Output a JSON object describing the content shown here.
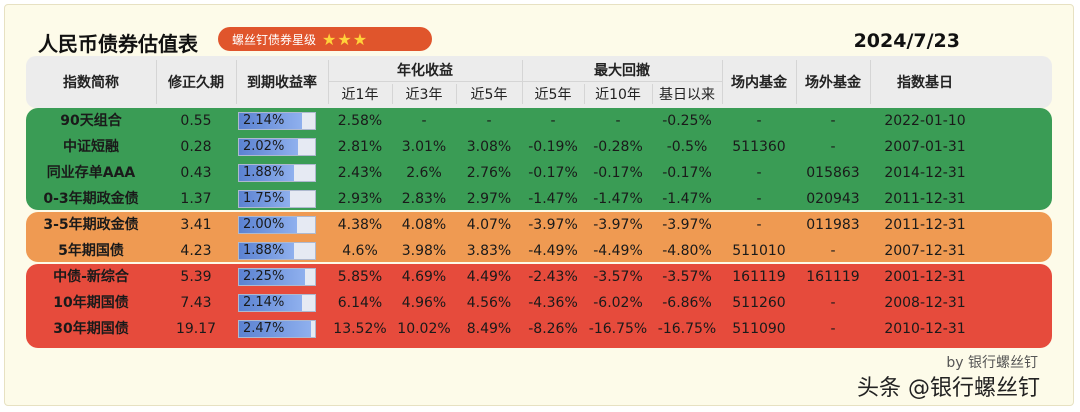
{
  "title": "人民币债券估值表",
  "badge": {
    "label": "螺丝钉债券星级",
    "stars": "★★★",
    "rating": 2.5
  },
  "date": "2024/7/23",
  "header": {
    "index_name": "指数简称",
    "duration": "修正久期",
    "ytm": "到期收益率",
    "annual_return": "年化收益",
    "ret_1y": "近1年",
    "ret_3y": "近3年",
    "ret_5y": "近5年",
    "max_drawdown": "最大回撤",
    "dd_5y": "近5年",
    "dd_10y": "近10年",
    "dd_base": "基日以来",
    "etf": "场内基金",
    "otc": "场外基金",
    "base_date": "指数基日"
  },
  "rows": [
    {
      "name": "90天组合",
      "duration": "0.55",
      "ytm": "2.14%",
      "ytm_pct": 2.14,
      "r1": "2.58%",
      "r3": "-",
      "r5": "-",
      "d5": "-",
      "d10": "-",
      "dbase": "-0.25%",
      "etf": "-",
      "otc": "-",
      "base": "2022-01-10"
    },
    {
      "name": "中证短融",
      "duration": "0.28",
      "ytm": "2.02%",
      "ytm_pct": 2.02,
      "r1": "2.81%",
      "r3": "3.01%",
      "r5": "3.08%",
      "d5": "-0.19%",
      "d10": "-0.28%",
      "dbase": "-0.5%",
      "etf": "511360",
      "otc": "-",
      "base": "2007-01-31"
    },
    {
      "name": "同业存单AAA",
      "duration": "0.43",
      "ytm": "1.88%",
      "ytm_pct": 1.88,
      "r1": "2.43%",
      "r3": "2.6%",
      "r5": "2.76%",
      "d5": "-0.17%",
      "d10": "-0.17%",
      "dbase": "-0.17%",
      "etf": "-",
      "otc": "015863",
      "base": "2014-12-31"
    },
    {
      "name": "0-3年期政金债",
      "duration": "1.37",
      "ytm": "1.75%",
      "ytm_pct": 1.75,
      "r1": "2.93%",
      "r3": "2.83%",
      "r5": "2.97%",
      "d5": "-1.47%",
      "d10": "-1.47%",
      "dbase": "-1.47%",
      "etf": "-",
      "otc": "020943",
      "base": "2011-12-31"
    },
    {
      "name": "3-5年期政金债",
      "duration": "3.41",
      "ytm": "2.00%",
      "ytm_pct": 2.0,
      "r1": "4.38%",
      "r3": "4.08%",
      "r5": "4.07%",
      "d5": "-3.97%",
      "d10": "-3.97%",
      "dbase": "-3.97%",
      "etf": "-",
      "otc": "011983",
      "base": "2011-12-31"
    },
    {
      "name": "5年期国债",
      "duration": "4.23",
      "ytm": "1.88%",
      "ytm_pct": 1.88,
      "r1": "4.6%",
      "r3": "3.98%",
      "r5": "3.83%",
      "d5": "-4.49%",
      "d10": "-4.49%",
      "dbase": "-4.80%",
      "etf": "511010",
      "otc": "-",
      "base": "2007-12-31"
    },
    {
      "name": "中债-新综合",
      "duration": "5.39",
      "ytm": "2.25%",
      "ytm_pct": 2.25,
      "r1": "5.85%",
      "r3": "4.69%",
      "r5": "4.49%",
      "d5": "-2.43%",
      "d10": "-3.57%",
      "dbase": "-3.57%",
      "etf": "161119",
      "otc": "161119",
      "base": "2001-12-31"
    },
    {
      "name": "10年期国债",
      "duration": "7.43",
      "ytm": "2.14%",
      "ytm_pct": 2.14,
      "r1": "6.14%",
      "r3": "4.96%",
      "r5": "4.56%",
      "d5": "-4.36%",
      "d10": "-6.02%",
      "dbase": "-6.86%",
      "etf": "511260",
      "otc": "-",
      "base": "2008-12-31"
    },
    {
      "name": "30年期国债",
      "duration": "19.17",
      "ytm": "2.47%",
      "ytm_pct": 2.47,
      "r1": "13.52%",
      "r3": "10.02%",
      "r5": "8.49%",
      "d5": "-8.26%",
      "d10": "-16.75%",
      "dbase": "-16.75%",
      "etf": "511090",
      "otc": "-",
      "base": "2010-12-31"
    }
  ],
  "ytm_scale_max": 2.6,
  "band_colors": {
    "green": "#3a9c55",
    "orange": "#ef9a52",
    "red": "#e64b3c"
  },
  "watermark_small": "by 银行螺丝钉",
  "watermark_main": "头条 @银行螺丝钉"
}
